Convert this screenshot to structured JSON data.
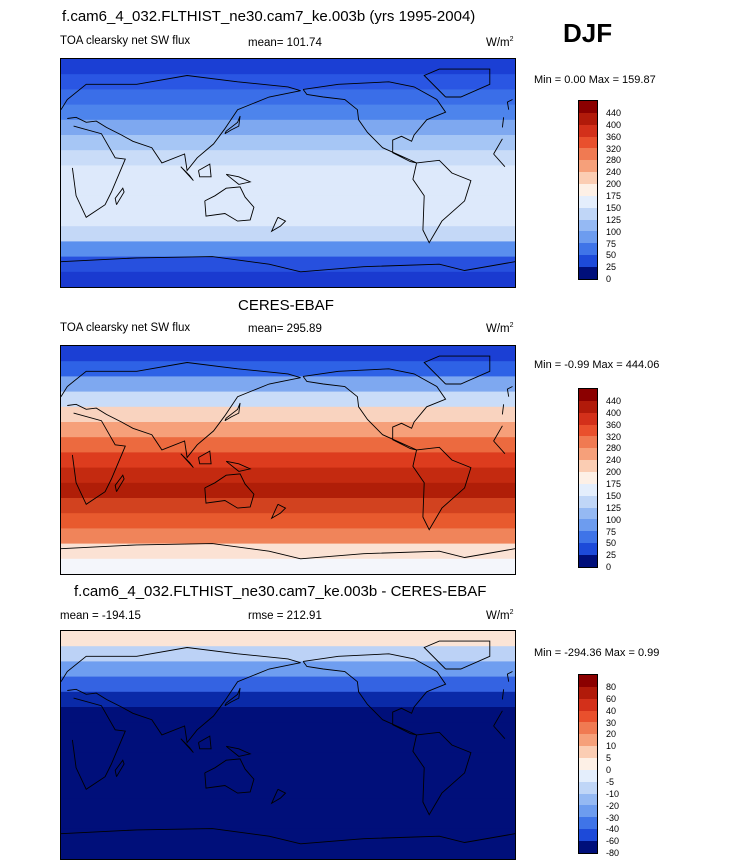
{
  "chart_data": [
    {
      "type": "heatmap",
      "title": "f.cam6_4_032.FLTHIST_ne30.cam7_ke.003b (yrs 1995-2004)",
      "variable": "TOA clearsky net SW flux",
      "mean_label": "mean= 101.74",
      "units_base": "W/m",
      "units_exp": "2",
      "minmax": "Min =   0.00 Max = 159.87",
      "levels": [
        "440",
        "400",
        "360",
        "320",
        "280",
        "240",
        "200",
        "175",
        "150",
        "125",
        "100",
        "75",
        "50",
        "25",
        "0"
      ],
      "lat_profile": [
        "#1b3fd4",
        "#2a56e3",
        "#3a6ee8",
        "#4d84ec",
        "#7ea8f0",
        "#a6c6f5",
        "#c9dcf8",
        "#dde9fb",
        "#dde9fb",
        "#dde9fb",
        "#dde9fb",
        "#c4d8f7",
        "#5a8fee",
        "#2750de",
        "#1a3ad0"
      ]
    },
    {
      "type": "heatmap",
      "title": "CERES-EBAF",
      "variable": "TOA clearsky net SW flux",
      "mean_label": "mean= 295.89",
      "units_base": "W/m",
      "units_exp": "2",
      "minmax": "Min =  -0.99 Max = 444.06",
      "levels": [
        "440",
        "400",
        "360",
        "320",
        "280",
        "240",
        "200",
        "175",
        "150",
        "125",
        "100",
        "75",
        "50",
        "25",
        "0"
      ],
      "lat_profile": [
        "#1b3fd4",
        "#2e62e6",
        "#7ea8f0",
        "#c9dcf8",
        "#f9d3bf",
        "#f6a07a",
        "#ec6a3f",
        "#dd3c1e",
        "#c42a10",
        "#b01e08",
        "#d2421f",
        "#e85a2e",
        "#f0845a",
        "#fbe2d4",
        "#f4f6fb"
      ]
    },
    {
      "type": "heatmap",
      "title": "f.cam6_4_032.FLTHIST_ne30.cam7_ke.003b - CERES-EBAF",
      "mean_label": "mean = -194.15",
      "rmse_label": "rmse = 212.91",
      "units_base": "W/m",
      "units_exp": "2",
      "minmax": "Min = -294.36 Max =   0.99",
      "levels": [
        "80",
        "60",
        "40",
        "30",
        "20",
        "10",
        "5",
        "0",
        "-5",
        "-10",
        "-20",
        "-30",
        "-40",
        "-60",
        "-80"
      ],
      "lat_profile": [
        "#fbe4d6",
        "#bcd2f6",
        "#6f9ef0",
        "#3463e2",
        "#0a2aa8",
        "#000f7a",
        "#000f7a",
        "#000f7a",
        "#000f7a",
        "#000f7a",
        "#000f7a",
        "#000f7a",
        "#000f7a",
        "#000f7a",
        "#000f7a"
      ]
    }
  ],
  "season": "DJF",
  "colors": {
    "cbar_main": [
      "#8b0000",
      "#b11a0a",
      "#d3301a",
      "#e9502d",
      "#f07a52",
      "#f6a07a",
      "#fbcdb3",
      "#fdf0e6",
      "#e4eefc",
      "#c0d6f7",
      "#95b9f3",
      "#6d9cef",
      "#3f74e8",
      "#1d4ad9",
      "#000f7a"
    ],
    "cbar_diff": [
      "#8b0000",
      "#b11a0a",
      "#d3301a",
      "#e9502d",
      "#f07a52",
      "#f6a07a",
      "#fbcdb3",
      "#fdf0e6",
      "#e4eefc",
      "#c0d6f7",
      "#95b9f3",
      "#6d9cef",
      "#3f74e8",
      "#1d4ad9",
      "#000f7a"
    ]
  }
}
